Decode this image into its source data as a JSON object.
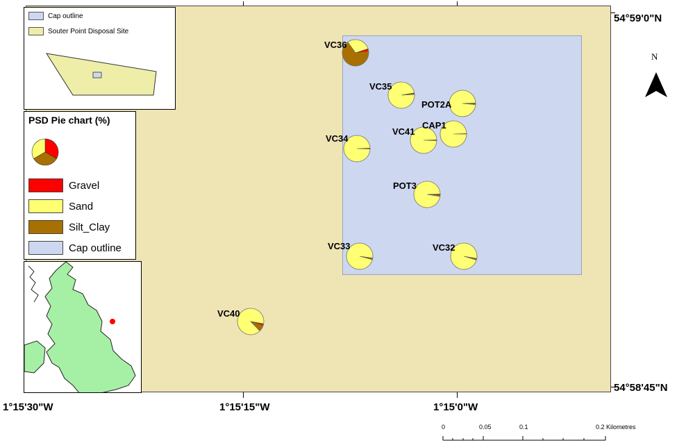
{
  "map": {
    "inset_legend": {
      "items": [
        {
          "label": "Cap outline",
          "color": "#cdd7ef"
        },
        {
          "label": "Souter Point Disposal Site",
          "color": "#eeeea8"
        }
      ]
    },
    "psd_legend": {
      "title": "PSD Pie chart (%)",
      "items": [
        {
          "label": "Gravel",
          "color": "#ff0000"
        },
        {
          "label": "Sand",
          "color": "#ffff73"
        },
        {
          "label": "Silt_Clay",
          "color": "#a87000"
        },
        {
          "label": "Cap outline",
          "color": "#cdd7ef"
        }
      ]
    },
    "coords": {
      "lat_top": "54°59'0\"N",
      "lat_bottom": "54°58'45\"N",
      "lon_left": "1°15'30\"W",
      "lon_mid": "1°15'15\"W",
      "lon_right": "1°15'0\"W"
    },
    "north_label": "N",
    "scale": {
      "labels": [
        "0",
        "0.05",
        "0.1",
        "0.2 Kilometres"
      ]
    },
    "colors": {
      "background": "#efe4b4",
      "cap": "#cdd7ef",
      "gravel": "#ff0000",
      "sand": "#ffff73",
      "silt_clay": "#a87000",
      "uk_land": "#a6f0a6"
    }
  },
  "chart_data": {
    "type": "pie",
    "title": "PSD Pie chart (%)",
    "categories": [
      "Gravel",
      "Sand",
      "Silt_Clay"
    ],
    "pies": [
      {
        "name": "VC36",
        "values": [
          3,
          30,
          67
        ]
      },
      {
        "name": "VC35",
        "values": [
          0.5,
          98,
          1.5
        ]
      },
      {
        "name": "POT2A",
        "values": [
          0.5,
          98,
          1.5
        ]
      },
      {
        "name": "VC41",
        "values": [
          0.5,
          99,
          0.5
        ]
      },
      {
        "name": "CAP1",
        "values": [
          0.3,
          99.4,
          0.3
        ]
      },
      {
        "name": "VC34",
        "values": [
          0.3,
          99,
          0.7
        ]
      },
      {
        "name": "POT3",
        "values": [
          1,
          97,
          2
        ]
      },
      {
        "name": "VC33",
        "values": [
          0.5,
          98,
          1.5
        ]
      },
      {
        "name": "VC32",
        "values": [
          0.5,
          98,
          1.5
        ]
      },
      {
        "name": "VC40",
        "values": [
          2,
          90,
          8
        ]
      }
    ]
  }
}
